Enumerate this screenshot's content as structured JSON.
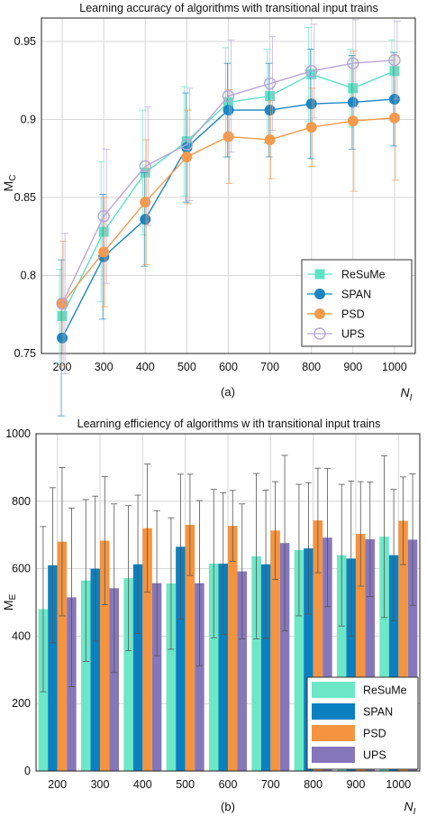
{
  "chart_data": [
    {
      "type": "line",
      "title": "Learning accuracy of algorithms with transitional input trains",
      "xlabel": "N",
      "xlabel_sub": "I",
      "ylabel": "M",
      "ylabel_sub": "C",
      "panel_label": "(a)",
      "x": [
        200,
        300,
        400,
        500,
        600,
        700,
        800,
        900,
        1000
      ],
      "xlim": [
        150,
        1050
      ],
      "ylim": [
        0.75,
        0.965
      ],
      "yticks": [
        0.75,
        0.8,
        0.85,
        0.9,
        0.95
      ],
      "ytick_labels": [
        "0.75",
        "0.8",
        "0.85",
        "0.9",
        "0.95"
      ],
      "grid": true,
      "legend_position": "bottom-right",
      "series": [
        {
          "name": "ReSuMe",
          "color": "#5ee3c4",
          "marker": "square",
          "values": [
            0.774,
            0.828,
            0.866,
            0.886,
            0.911,
            0.915,
            0.929,
            0.92,
            0.931
          ],
          "err": [
            0.03,
            0.045,
            0.04,
            0.035,
            0.035,
            0.03,
            0.03,
            0.025,
            0.02
          ]
        },
        {
          "name": "SPAN",
          "color": "#1b86c4",
          "marker": "circle",
          "values": [
            0.76,
            0.812,
            0.836,
            0.882,
            0.906,
            0.906,
            0.91,
            0.911,
            0.913
          ],
          "err": [
            0.05,
            0.04,
            0.03,
            0.035,
            0.03,
            0.03,
            0.035,
            0.03,
            0.03
          ]
        },
        {
          "name": "PSD",
          "color": "#f39a4c",
          "marker": "circle",
          "values": [
            0.782,
            0.815,
            0.847,
            0.876,
            0.889,
            0.887,
            0.895,
            0.899,
            0.901
          ],
          "err": [
            0.04,
            0.035,
            0.04,
            0.03,
            0.03,
            0.025,
            0.025,
            0.045,
            0.04
          ]
        },
        {
          "name": "UPS",
          "color": "#b8a6d8",
          "marker": "open-circle",
          "values": [
            0.782,
            0.838,
            0.87,
            0.884,
            0.915,
            0.923,
            0.931,
            0.936,
            0.938
          ],
          "err": [
            0.045,
            0.043,
            0.038,
            0.036,
            0.036,
            0.03,
            0.03,
            0.028,
            0.025
          ]
        }
      ]
    },
    {
      "type": "bar",
      "title": "Learning efficiency of algorithms w ith transitional input trains",
      "xlabel": "N",
      "xlabel_sub": "I",
      "ylabel": "M",
      "ylabel_sub": "E",
      "panel_label": "(b)",
      "categories": [
        "200",
        "300",
        "400",
        "500",
        "600",
        "700",
        "800",
        "900",
        "1000"
      ],
      "ylim": [
        0,
        1000
      ],
      "yticks": [
        0,
        200,
        400,
        600,
        800,
        1000
      ],
      "grid": true,
      "legend_position": "bottom-right",
      "series": [
        {
          "name": "ReSuMe",
          "color": "#6ce8c6",
          "values": [
            480,
            565,
            572,
            556,
            615,
            637,
            655,
            640,
            695
          ],
          "err": [
            245,
            240,
            215,
            195,
            220,
            245,
            195,
            210,
            240
          ]
        },
        {
          "name": "SPAN",
          "color": "#0b80c0",
          "values": [
            610,
            600,
            613,
            665,
            615,
            613,
            660,
            630,
            640
          ],
          "err": [
            230,
            215,
            205,
            215,
            210,
            220,
            195,
            230,
            195
          ]
        },
        {
          "name": "PSD",
          "color": "#f59440",
          "values": [
            680,
            683,
            720,
            730,
            727,
            713,
            743,
            703,
            742
          ],
          "err": [
            220,
            190,
            190,
            150,
            105,
            145,
            155,
            155,
            130
          ]
        },
        {
          "name": "UPS",
          "color": "#8677bb",
          "values": [
            515,
            542,
            557,
            557,
            592,
            676,
            692,
            687,
            686
          ],
          "err": [
            265,
            250,
            215,
            245,
            200,
            260,
            205,
            170,
            195
          ]
        }
      ]
    }
  ]
}
